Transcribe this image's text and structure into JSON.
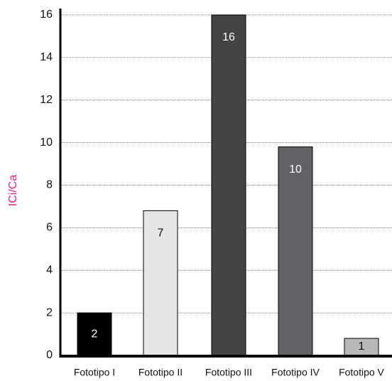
{
  "chart_data": {
    "type": "bar",
    "title": "",
    "xlabel": "",
    "ylabel": "ICi/Ca",
    "ylim": [
      0,
      16
    ],
    "yticks": [
      0,
      2,
      4,
      6,
      8,
      10,
      12,
      14,
      16
    ],
    "grid": true,
    "categories": [
      "Fototipo I",
      "Fototipo II",
      "Fototipo III",
      "Fototipo IV",
      "Fototipo V"
    ],
    "values": [
      2,
      6.8,
      16,
      9.8,
      0.8
    ],
    "data_labels": [
      "2",
      "7",
      "16",
      "10",
      "1"
    ],
    "bar_colors": [
      "#000000",
      "#e6e6e6",
      "#444444",
      "#616166",
      "#b8b8bb"
    ],
    "label_colors": [
      "#ffffff",
      "#111111",
      "#ffffff",
      "#ffffff",
      "#111111"
    ],
    "ylabel_color": "#e0218a"
  }
}
